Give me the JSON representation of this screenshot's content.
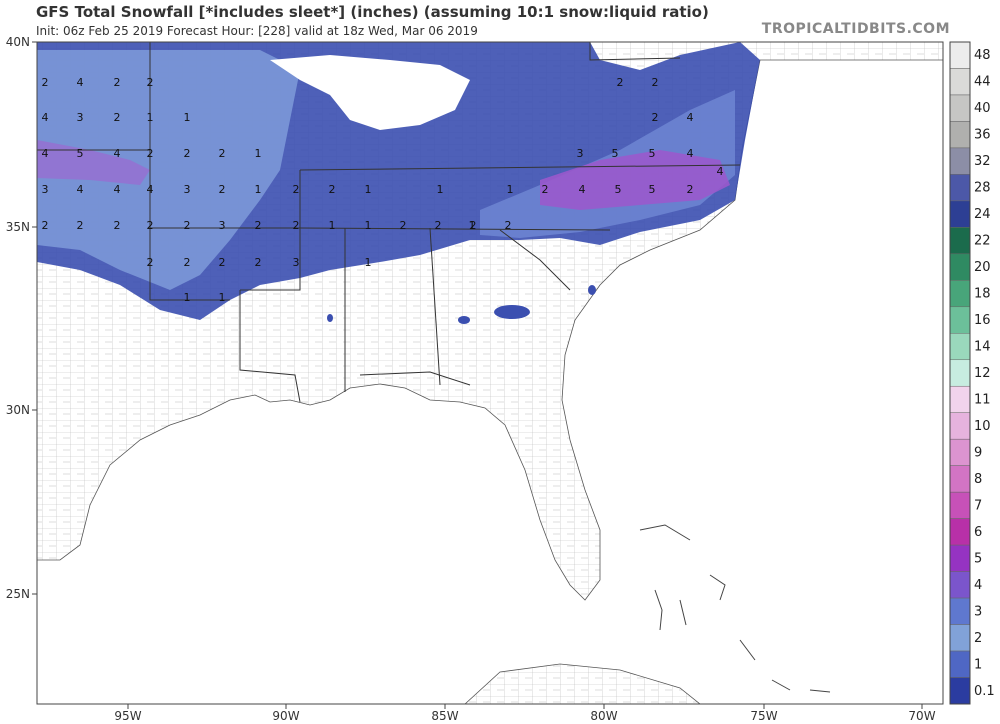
{
  "header": {
    "title": "GFS Total Snowfall [*includes sleet*] (inches) (assuming 10:1 snow:liquid ratio)",
    "subtitle": "Init: 06z Feb 25 2019   Forecast Hour: [228]   valid at 18z Wed, Mar 06 2019",
    "brand": "TROPICALTIDBITS.COM"
  },
  "axes": {
    "lat_labels": [
      "40N",
      "35N",
      "30N",
      "25N"
    ],
    "lon_labels": [
      "95W",
      "90W",
      "85W",
      "80W",
      "75W",
      "70W"
    ]
  },
  "colorbar": {
    "labels": [
      "48",
      "44",
      "40",
      "36",
      "32",
      "28",
      "24",
      "22",
      "20",
      "18",
      "16",
      "14",
      "12",
      "11",
      "10",
      "9",
      "8",
      "7",
      "6",
      "5",
      "4",
      "3",
      "2",
      "1",
      "0.1"
    ],
    "colors": [
      "#ececec",
      "#dadad8",
      "#c6c6c4",
      "#b0b0ae",
      "#8c8ea6",
      "#4c58a8",
      "#2d3f94",
      "#1b6b4c",
      "#2f8a62",
      "#48a57a",
      "#6cc09a",
      "#9ad8bc",
      "#c7ece0",
      "#f1d3ec",
      "#e6b3de",
      "#dc94d0",
      "#d274c4",
      "#c751b8",
      "#b830a8",
      "#9533c2",
      "#7b55cc",
      "#5f78cf",
      "#81a2d8",
      "#4f67c4",
      "#2b3ca0"
    ]
  },
  "snow_labels": [
    {
      "v": "2"
    },
    {
      "v": "4"
    },
    {
      "v": "2"
    },
    {
      "v": "2"
    },
    {
      "v": "4"
    },
    {
      "v": "3"
    },
    {
      "v": "2"
    },
    {
      "v": "1"
    },
    {
      "v": "1"
    },
    {
      "v": "4"
    },
    {
      "v": "5"
    },
    {
      "v": "4"
    },
    {
      "v": "2"
    },
    {
      "v": "2"
    },
    {
      "v": "2"
    },
    {
      "v": "1"
    },
    {
      "v": "3"
    },
    {
      "v": "4"
    },
    {
      "v": "4"
    },
    {
      "v": "4"
    },
    {
      "v": "3"
    },
    {
      "v": "2"
    },
    {
      "v": "1"
    },
    {
      "v": "2"
    },
    {
      "v": "2"
    },
    {
      "v": "1"
    },
    {
      "v": "2"
    },
    {
      "v": "2"
    },
    {
      "v": "2"
    },
    {
      "v": "2"
    },
    {
      "v": "2"
    },
    {
      "v": "3"
    },
    {
      "v": "2"
    },
    {
      "v": "2"
    },
    {
      "v": "1"
    },
    {
      "v": "1"
    },
    {
      "v": "2"
    },
    {
      "v": "2"
    },
    {
      "v": "2"
    },
    {
      "v": "2"
    },
    {
      "v": "2"
    },
    {
      "v": "2"
    },
    {
      "v": "2"
    },
    {
      "v": "3"
    },
    {
      "v": "1"
    },
    {
      "v": "1"
    },
    {
      "v": "1"
    },
    {
      "v": "2"
    },
    {
      "v": "2"
    },
    {
      "v": "4"
    },
    {
      "v": "2"
    },
    {
      "v": "3"
    },
    {
      "v": "5"
    },
    {
      "v": "5"
    },
    {
      "v": "4"
    },
    {
      "v": "1"
    },
    {
      "v": "2"
    },
    {
      "v": "4"
    },
    {
      "v": "5"
    },
    {
      "v": "5"
    },
    {
      "v": "2"
    },
    {
      "v": "4"
    },
    {
      "v": "1"
    },
    {
      "v": "1"
    },
    {
      "v": "2"
    }
  ]
}
